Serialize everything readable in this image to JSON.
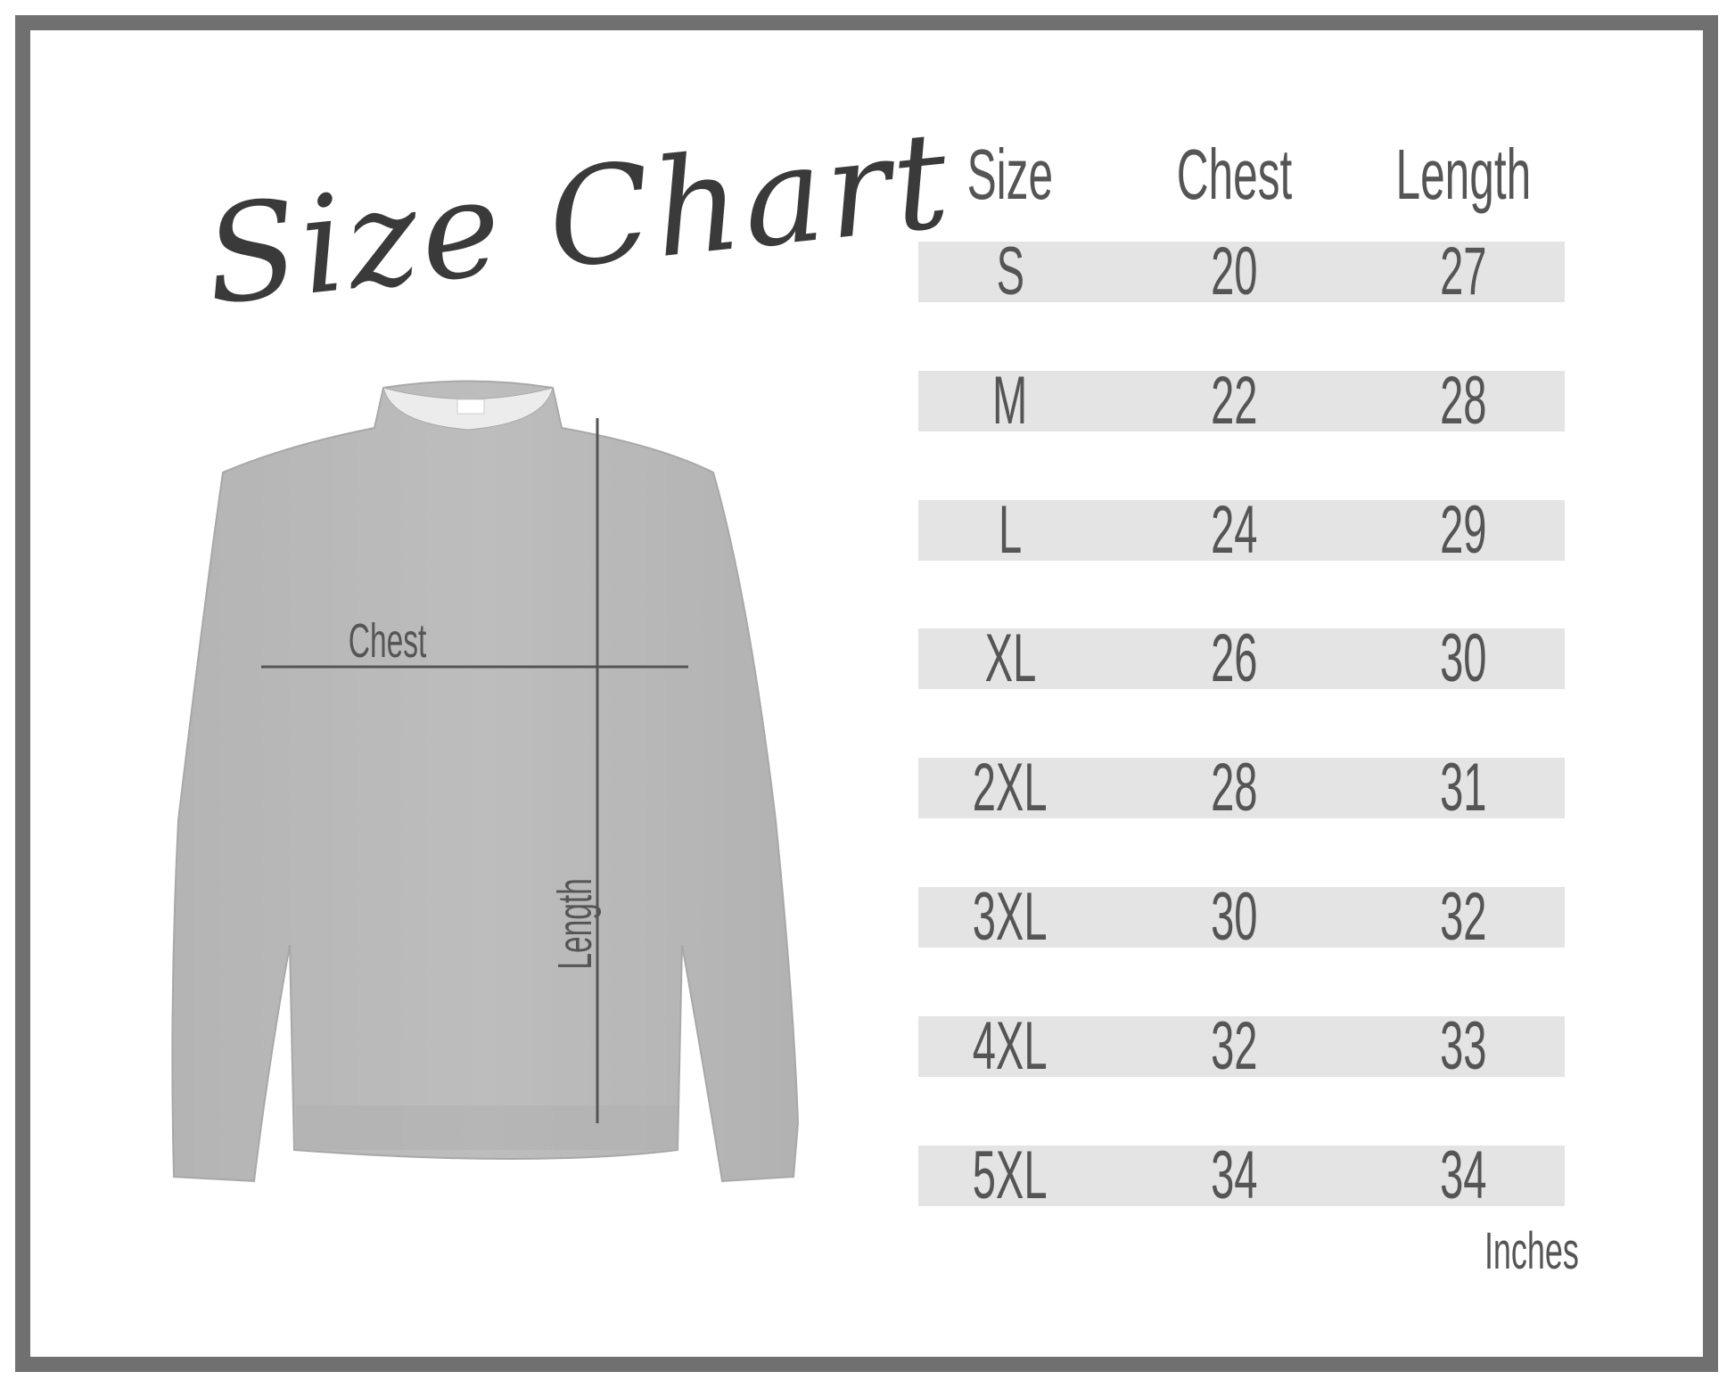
{
  "title": "Size Chart",
  "table": {
    "headers": [
      "Size",
      "Chest",
      "Length"
    ],
    "rows": [
      [
        "S",
        "20",
        "27"
      ],
      [
        "M",
        "22",
        "28"
      ],
      [
        "L",
        "24",
        "29"
      ],
      [
        "XL",
        "26",
        "30"
      ],
      [
        "2XL",
        "28",
        "31"
      ],
      [
        "3XL",
        "30",
        "32"
      ],
      [
        "4XL",
        "32",
        "33"
      ],
      [
        "5XL",
        "34",
        "34"
      ]
    ],
    "unit": "Inches"
  },
  "diagram": {
    "chest_label": "Chest",
    "length_label": "Length"
  },
  "colors": {
    "frame": "#707070",
    "row_band": "#e4e4e4",
    "text": "#555555",
    "garment": "#b9b9b9"
  }
}
